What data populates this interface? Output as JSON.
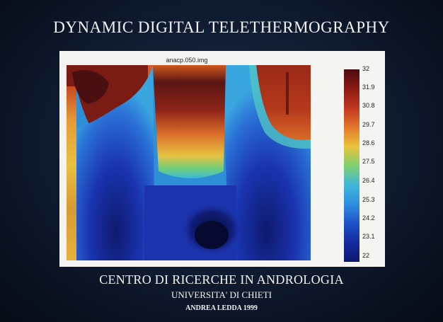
{
  "slide": {
    "title": "DYNAMIC DIGITAL TELETHERMOGRAPHY",
    "caption_line1": "CENTRO DI RICERCHE IN ANDROLOGIA",
    "caption_line2": "UNIVERSITA' DI CHIETI",
    "caption_line3": "ANDREA LEDDA 1999"
  },
  "thermogram": {
    "filename": "anacp.050.img",
    "colorbar_ticks": [
      "32",
      "31.9",
      "30.8",
      "29.7",
      "28.6",
      "27.5",
      "26.4",
      "25.3",
      "24.2",
      "23.1",
      "22"
    ]
  }
}
